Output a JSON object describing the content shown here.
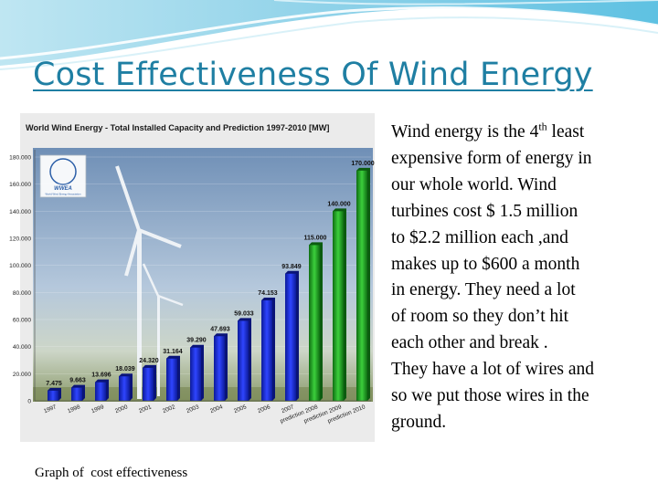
{
  "slide": {
    "title": "Cost Effectiveness Of Wind Energy",
    "body_part1": "Wind energy is the 4",
    "body_sup": "th",
    "body_part2": " least\nexpensive form of energy in\nour  whole  world.  Wind\nturbines cost $ 1.5 million\nto $2.2 million each ,and\nmakes up to $600 a month\nin energy. They need a lot\nof room so they  don’t hit\neach other and break .\nThey have a lot of wires and\nso we put those wires in the\nground.",
    "caption": "Graph of  cost effectiveness"
  },
  "logo": {
    "text": "WWEA",
    "subtext": "World Wind Energy Association"
  },
  "chart_data": {
    "type": "bar",
    "title": "World Wind Energy - Total Installed Capacity and Prediction 1997-2010 [MW]",
    "categories": [
      "1997",
      "1998",
      "1999",
      "2000",
      "2001",
      "2002",
      "2003",
      "2004",
      "2005",
      "2006",
      "2007",
      "prediction 2008",
      "prediction 2009",
      "prediction 2010"
    ],
    "values": [
      7475,
      9663,
      13696,
      18039,
      24320,
      31164,
      39290,
      47693,
      59033,
      74153,
      93849,
      115000,
      140000,
      170000
    ],
    "value_labels": [
      "7.475",
      "9.663",
      "13.696",
      "18.039",
      "24.320",
      "31.164",
      "39.290",
      "47.693",
      "59.033",
      "74.153",
      "93.849",
      "115.000",
      "140.000",
      "170.000"
    ],
    "series_colors": [
      "#1a2fd6",
      "#1a2fd6",
      "#1a2fd6",
      "#1a2fd6",
      "#1a2fd6",
      "#1a2fd6",
      "#1a2fd6",
      "#1a2fd6",
      "#1a2fd6",
      "#1a2fd6",
      "#1a2fd6",
      "#1f9a1f",
      "#1f9a1f",
      "#1f9a1f"
    ],
    "yticks": [
      0,
      20000,
      40000,
      60000,
      80000,
      100000,
      120000,
      140000,
      160000,
      180000
    ],
    "ytick_labels": [
      "0",
      "20.000",
      "40.000",
      "60.000",
      "80.000",
      "100.000",
      "120.000",
      "140.000",
      "160.000",
      "180.000"
    ],
    "ylim": [
      0,
      180000
    ],
    "xlabel": "",
    "ylabel": "",
    "grid": true
  }
}
